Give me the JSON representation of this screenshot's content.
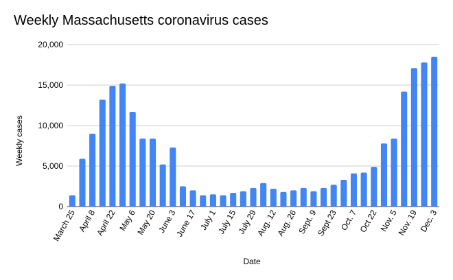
{
  "chart_data": {
    "type": "bar",
    "title": "Weekly Massachusetts coronavirus cases",
    "xlabel": "Date",
    "ylabel": "Weekly cases",
    "ylim": [
      0,
      20000
    ],
    "yticks": [
      0,
      5000,
      10000,
      15000,
      20000
    ],
    "ytick_labels": [
      "0",
      "5,000",
      "10,000",
      "15,000",
      "20,000"
    ],
    "grid": true,
    "legend": "none",
    "bar_color": "#4285f4",
    "categories": [
      "March 25",
      "",
      "April 8",
      "",
      "April 22",
      "",
      "May 6",
      "",
      "May 20",
      "",
      "June 3",
      "",
      "June 17",
      "",
      "July 1",
      "",
      "July 15",
      "",
      "July 29",
      "",
      "Aug. 12",
      "",
      "Aug. 26",
      "",
      "Sept. 9",
      "",
      "Sept 23",
      "",
      "Oct. 7",
      "",
      "Oct 22",
      "",
      "Nov. 5",
      "",
      "Nov. 19",
      "",
      "Dec. 3"
    ],
    "values": [
      1400,
      5900,
      9000,
      13200,
      14900,
      15200,
      11700,
      8400,
      8400,
      5200,
      7300,
      2500,
      2000,
      1400,
      1500,
      1400,
      1700,
      1900,
      2300,
      2900,
      2200,
      1800,
      2000,
      2300,
      1900,
      2300,
      2700,
      3300,
      4100,
      4200,
      4900,
      7800,
      8400,
      14200,
      17100,
      17800,
      18500
    ]
  }
}
